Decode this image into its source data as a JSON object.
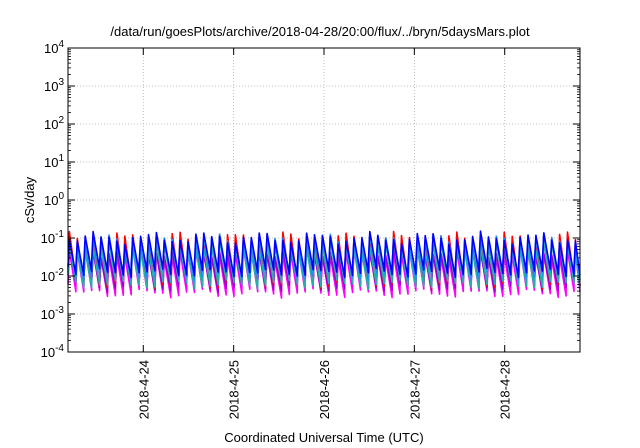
{
  "chart_data": {
    "type": "line",
    "title": "/data/run/goesPlots/archive/2018-04-28/20:00/flux/../bryn/5daysMars.plot",
    "xlabel": "Coordinated Universal Time (UTC)",
    "ylabel": "cSv/day",
    "xscale": "time",
    "yscale": "log",
    "xlim": [
      "2018-04-23T04:00",
      "2018-04-28T20:00"
    ],
    "ylim": [
      0.0001,
      10000
    ],
    "grid": true,
    "legend": "none",
    "x_ticks": [
      "2018-4-24",
      "2018-4-25",
      "2018-4-26",
      "2018-4-27",
      "2018-4-28"
    ],
    "y_ticks": [
      {
        "base": "10",
        "exp": "-4"
      },
      {
        "base": "10",
        "exp": "-3"
      },
      {
        "base": "10",
        "exp": "-2"
      },
      {
        "base": "10",
        "exp": "-1"
      },
      {
        "base": "10",
        "exp": "0"
      },
      {
        "base": "10",
        "exp": "1"
      },
      {
        "base": "10",
        "exp": "2"
      },
      {
        "base": "10",
        "exp": "3"
      },
      {
        "base": "10",
        "exp": "4"
      }
    ],
    "oscillation": {
      "cycles": 65,
      "period_hours": 2.1
    },
    "series": [
      {
        "color": "#ff00ff",
        "peak": 0.04,
        "trough": 0.0035
      },
      {
        "color": "#9400d3",
        "peak": 0.045,
        "trough": 0.005
      },
      {
        "color": "#ff0000",
        "peak": 0.1,
        "trough": 0.006
      },
      {
        "color": "#20b2aa",
        "peak": 0.06,
        "trough": 0.006
      },
      {
        "color": "#1e90ff",
        "peak": 0.09,
        "trough": 0.01
      },
      {
        "color": "#0000ff",
        "peak": 0.1,
        "trough": 0.012
      }
    ]
  }
}
